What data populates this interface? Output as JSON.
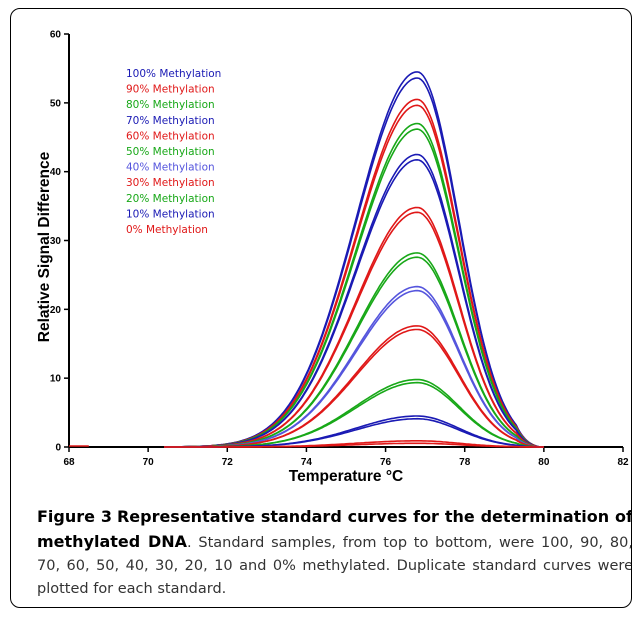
{
  "chart_data": {
    "type": "line",
    "xlabel": "Temperature °C",
    "ylabel": "Relative Signal Difference",
    "xlim": [
      68,
      82
    ],
    "ylim": [
      0,
      60
    ],
    "x_ticks": [
      "68",
      "70",
      "72",
      "74",
      "76",
      "78",
      "80",
      "82"
    ],
    "y_ticks": [
      "0",
      "10",
      "20",
      "30",
      "40",
      "50",
      "60"
    ],
    "grid": false,
    "legend_position": "top-left",
    "peak_x": 76.8,
    "series": [
      {
        "name": "100% Methylation",
        "peak": 54.5,
        "color": "#1a1ab4"
      },
      {
        "name": "90% Methylation",
        "peak": 50.5,
        "color": "#e01818"
      },
      {
        "name": "80% Methylation",
        "peak": 47.0,
        "color": "#18a818"
      },
      {
        "name": "70% Methylation",
        "peak": 42.5,
        "color": "#1a1ab4"
      },
      {
        "name": "60% Methylation",
        "peak": 34.8,
        "color": "#e01818"
      },
      {
        "name": "50% Methylation",
        "peak": 28.2,
        "color": "#18a818"
      },
      {
        "name": "40% Methylation",
        "peak": 23.3,
        "color": "#5555dd"
      },
      {
        "name": "30% Methylation",
        "peak": 17.6,
        "color": "#e01818"
      },
      {
        "name": "20% Methylation",
        "peak": 9.8,
        "color": "#18a818"
      },
      {
        "name": "10% Methylation",
        "peak": 4.5,
        "color": "#1a1ab4"
      },
      {
        "name": "0% Methylation",
        "peak": 0.9,
        "color": "#e01818"
      }
    ]
  },
  "caption": {
    "figure_label": "Figure 3",
    "title": "Representative standard curves for the determination of methylated DNA",
    "body": ". Standard samples, from top to bottom, were 100, 90, 80, 70, 60, 50, 40, 30, 20, 10 and 0% methylated. Duplicate standard curves were plotted for each standard."
  }
}
